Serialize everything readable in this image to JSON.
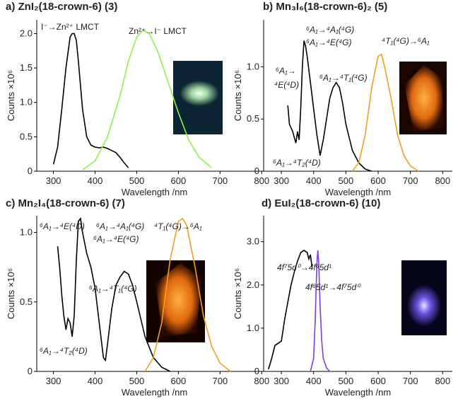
{
  "chart_data": [
    {
      "type": "line",
      "title": "a) ZnI₂(18-crown-6) (3)",
      "x_label": "Wavelength /nm",
      "y_label": "Counts ×10⁶",
      "xlim": [
        260,
        825
      ],
      "ylim": [
        0,
        2.2
      ],
      "xticks": [
        300,
        400,
        500,
        600,
        700,
        800
      ],
      "yticks": [
        0,
        0.5,
        {
          "value": 1,
          "label": "1.0"
        },
        1.5,
        {
          "value": 2,
          "label": "2.0"
        }
      ],
      "series": [
        {
          "color": "#000000",
          "x": [
            300,
            310,
            320,
            330,
            340,
            345,
            350,
            355,
            360,
            370,
            380,
            390,
            400,
            410,
            420,
            430,
            440,
            450,
            460,
            470,
            480
          ],
          "values": [
            0.1,
            0.35,
            0.9,
            1.5,
            1.95,
            2.0,
            2.0,
            1.9,
            1.6,
            0.9,
            0.5,
            0.38,
            0.35,
            0.34,
            0.35,
            0.33,
            0.3,
            0.27,
            0.2,
            0.12,
            0.05
          ]
        },
        {
          "color": "#8ef04a",
          "x": [
            370,
            400,
            430,
            460,
            480,
            500,
            515,
            530,
            550,
            575,
            600,
            625,
            650,
            680
          ],
          "values": [
            0.02,
            0.15,
            0.5,
            1.1,
            1.6,
            1.95,
            2.05,
            2.0,
            1.75,
            1.3,
            0.85,
            0.45,
            0.2,
            0.05
          ]
        }
      ],
      "annotations": [
        {
          "text": "I⁻→Zn²⁺ LMCT"
        },
        {
          "text": "Zn²⁺→I⁻ LMCT",
          "color": "#6fe03a"
        }
      ]
    },
    {
      "type": "line",
      "title": "b) Mn₃I₆(18-crown-6)₂ (5)",
      "x_label": "Wavelength /nm",
      "y_label": "Counts ×10⁶",
      "xlim": [
        245,
        830
      ],
      "ylim": [
        0,
        1.45
      ],
      "xticks": [
        300,
        400,
        500,
        600,
        700,
        800
      ],
      "yticks": [
        0,
        0.5,
        {
          "value": 1,
          "label": "1.0"
        }
      ],
      "series": [
        {
          "color": "#000000",
          "x": [
            320,
            325,
            335,
            345,
            350,
            355,
            360,
            365,
            370,
            375,
            380,
            390,
            400,
            410,
            420,
            430,
            440,
            450,
            460,
            470,
            480,
            490,
            500,
            520,
            540,
            560,
            580
          ],
          "values": [
            0.63,
            0.45,
            0.38,
            0.27,
            0.38,
            0.3,
            0.6,
            1.0,
            1.25,
            1.2,
            1.1,
            0.85,
            0.6,
            0.35,
            0.15,
            0.3,
            0.5,
            0.7,
            0.8,
            0.85,
            0.8,
            0.65,
            0.45,
            0.2,
            0.08,
            0.02,
            0.0
          ]
        },
        {
          "color": "#f0a020",
          "x": [
            520,
            540,
            560,
            580,
            600,
            610,
            620,
            640,
            660,
            680,
            700,
            725
          ],
          "values": [
            0.0,
            0.08,
            0.35,
            0.8,
            1.1,
            1.12,
            1.0,
            0.7,
            0.35,
            0.15,
            0.05,
            0.0
          ]
        }
      ],
      "annotations": [
        {
          "text": "⁶A₁→⁴A₁(⁴G)"
        },
        {
          "text": "⁶A₁→⁴E(⁴G)"
        },
        {
          "text": "⁶A₁→"
        },
        {
          "text": "⁴E(⁴D)"
        },
        {
          "text": "⁶A₁→⁴T₁(⁴G)"
        },
        {
          "text": "⁴T₁(⁴G)→⁶A₁",
          "color": "#f0a020"
        },
        {
          "text": "⁶A₁→⁴T₂(⁴D)"
        }
      ]
    },
    {
      "type": "line",
      "title": "c) Mn₂I₄(18-crown-6) (7)",
      "x_label": "Wavelength /nm",
      "y_label": "Counts ×10⁶",
      "xlim": [
        260,
        825
      ],
      "ylim": [
        0,
        1.12
      ],
      "xticks": [
        300,
        400,
        500,
        600,
        700,
        800
      ],
      "yticks": [
        0,
        0.5,
        {
          "value": 1,
          "label": "1.0"
        }
      ],
      "series": [
        {
          "color": "#000000",
          "x": [
            310,
            315,
            320,
            325,
            330,
            335,
            340,
            345,
            350,
            355,
            360,
            365,
            370,
            380,
            390,
            400,
            410,
            420,
            425,
            430,
            440,
            450,
            460,
            470,
            480,
            490,
            500,
            520,
            540,
            560,
            580
          ],
          "values": [
            0.9,
            0.75,
            0.55,
            0.4,
            0.3,
            0.38,
            0.35,
            0.25,
            0.4,
            0.8,
            1.08,
            1.1,
            1.0,
            0.85,
            0.75,
            0.6,
            0.35,
            0.1,
            0.08,
            0.2,
            0.45,
            0.62,
            0.68,
            0.72,
            0.7,
            0.62,
            0.5,
            0.25,
            0.1,
            0.03,
            0.0
          ]
        },
        {
          "color": "#f0a020",
          "x": [
            520,
            540,
            560,
            580,
            600,
            610,
            620,
            640,
            660,
            680,
            700,
            725
          ],
          "values": [
            0.0,
            0.1,
            0.35,
            0.8,
            1.08,
            1.1,
            1.05,
            0.75,
            0.4,
            0.18,
            0.06,
            0.0
          ]
        }
      ],
      "annotations": [
        {
          "text": "⁶A₁→⁴E(⁴D)"
        },
        {
          "text": "⁶A₁→⁴A₁(⁴G)"
        },
        {
          "text": "⁶A₁→⁴E(⁴G)"
        },
        {
          "text": "⁴T₁(⁴G)→⁶A₁",
          "color": "#f0a020"
        },
        {
          "text": "⁶A₁→⁴T₁(⁴G)"
        },
        {
          "text": "⁶A₁→⁴T₂(⁴D)"
        }
      ]
    },
    {
      "type": "line",
      "title": "d) EuI₂(18-crown-6) (10)",
      "x_label": "Wavelength /nm",
      "y_label": "Counts ×10⁶",
      "xlim": [
        245,
        830
      ],
      "ylim": [
        0,
        3.6
      ],
      "xticks": [
        300,
        400,
        500,
        600,
        700,
        800
      ],
      "yticks": [
        0,
        {
          "value": 1,
          "label": "1.0"
        },
        {
          "value": 2,
          "label": "2.0"
        },
        {
          "value": 3,
          "label": "3.0"
        }
      ],
      "series": [
        {
          "color": "#000000",
          "x": [
            260,
            270,
            280,
            290,
            300,
            310,
            320,
            330,
            340,
            350,
            360,
            370,
            380,
            385,
            390,
            395
          ],
          "values": [
            0.05,
            0.3,
            0.6,
            0.65,
            0.7,
            1.2,
            1.6,
            2.0,
            2.3,
            2.55,
            2.75,
            2.8,
            2.75,
            2.6,
            2.7,
            2.4
          ]
        },
        {
          "color": "#7b3fe4",
          "x": [
            390,
            400,
            405,
            410,
            413,
            416,
            420,
            425,
            430,
            440,
            450
          ],
          "values": [
            0.0,
            0.3,
            1.2,
            2.5,
            2.8,
            2.5,
            1.5,
            0.7,
            0.3,
            0.08,
            0.0
          ]
        }
      ],
      "annotations": [
        {
          "text": "4f⁷5d⁰→4f⁶5d¹"
        },
        {
          "text": "4f⁶5d¹→4f⁷5d⁰",
          "color": "#7b3fe4"
        }
      ]
    }
  ]
}
